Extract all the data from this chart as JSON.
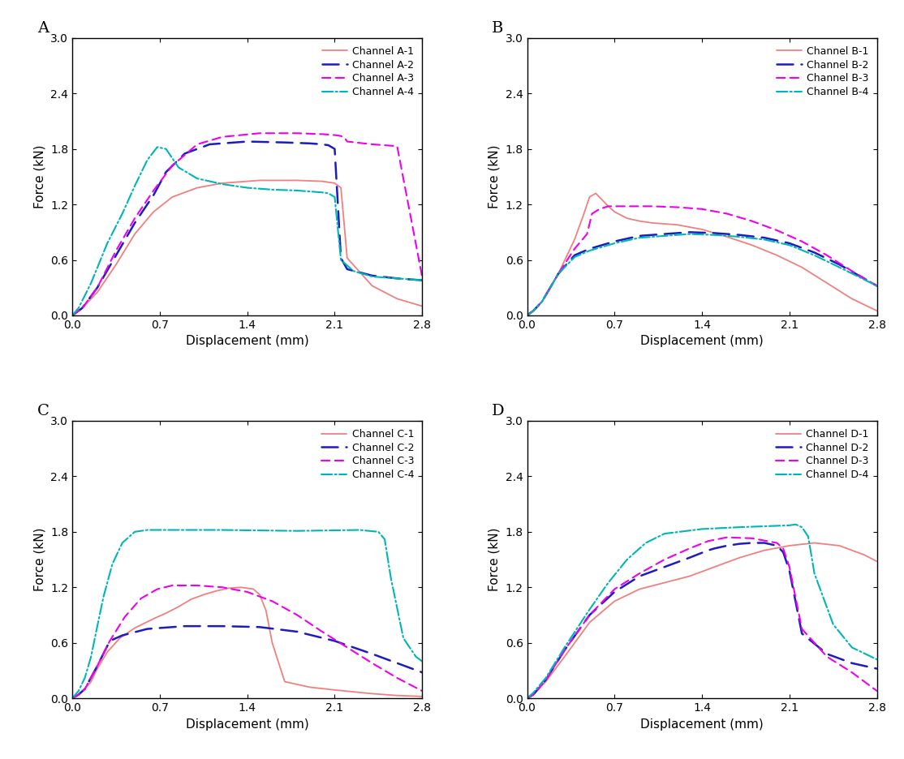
{
  "panels": [
    "A",
    "B",
    "C",
    "D"
  ],
  "xlabel": "Displacement (mm)",
  "ylabel": "Force (kN)",
  "xlim": [
    0,
    2.8
  ],
  "ylim": [
    0,
    3.0
  ],
  "xticks": [
    0.0,
    0.7,
    1.4,
    2.1,
    2.8
  ],
  "yticks": [
    0.0,
    0.6,
    1.2,
    1.8,
    2.4,
    3.0
  ],
  "colors": {
    "ch1": "#F08080",
    "ch2": "#1C1CBF",
    "ch3": "#EE00EE",
    "ch4": "#00B5B5"
  },
  "figsize": [
    11.14,
    9.36
  ],
  "dpi": 100
}
